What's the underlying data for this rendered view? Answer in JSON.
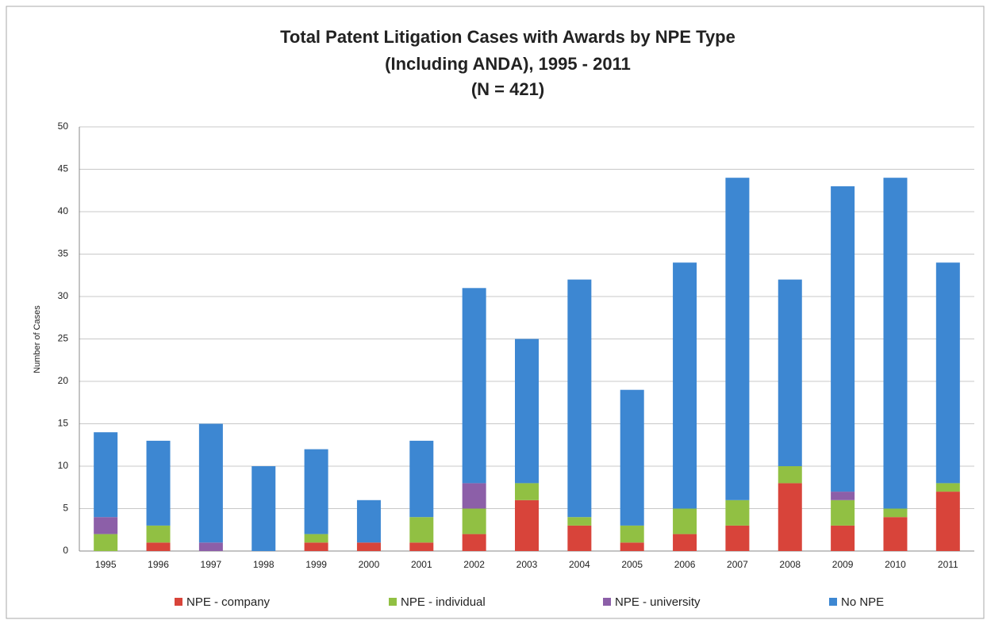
{
  "chart_data": {
    "type": "stacked_bar",
    "title": [
      "Total Patent Litigation Cases with Awards by NPE Type",
      "(Including ANDA), 1995 - 2011",
      "(N = 421)"
    ],
    "y_label": "Number of Cases",
    "categories": [
      "1995",
      "1996",
      "1997",
      "1998",
      "1999",
      "2000",
      "2001",
      "2002",
      "2003",
      "2004",
      "2005",
      "2006",
      "2007",
      "2008",
      "2009",
      "2010",
      "2011"
    ],
    "series": [
      {
        "name": "NPE - company",
        "color": "#d8443a",
        "values": [
          0,
          1,
          0,
          0,
          1,
          1,
          1,
          2,
          6,
          3,
          1,
          2,
          3,
          8,
          3,
          4,
          7
        ]
      },
      {
        "name": "NPE - individual",
        "color": "#91c043",
        "values": [
          2,
          2,
          0,
          0,
          1,
          0,
          3,
          3,
          2,
          1,
          2,
          3,
          3,
          2,
          3,
          1,
          1
        ]
      },
      {
        "name": "NPE - university",
        "color": "#8c5fa8",
        "values": [
          2,
          0,
          1,
          0,
          0,
          0,
          0,
          3,
          0,
          0,
          0,
          0,
          0,
          0,
          1,
          0,
          0
        ]
      },
      {
        "name": "No NPE",
        "color": "#3d87d2",
        "values": [
          10,
          10,
          14,
          10,
          10,
          5,
          9,
          23,
          17,
          28,
          16,
          29,
          38,
          22,
          36,
          39,
          26
        ]
      }
    ],
    "ylim": [
      0,
      50
    ],
    "yticks": [
      0,
      5,
      10,
      15,
      20,
      25,
      30,
      35,
      40,
      45,
      50
    ],
    "grid": true,
    "legend": "bottom"
  }
}
